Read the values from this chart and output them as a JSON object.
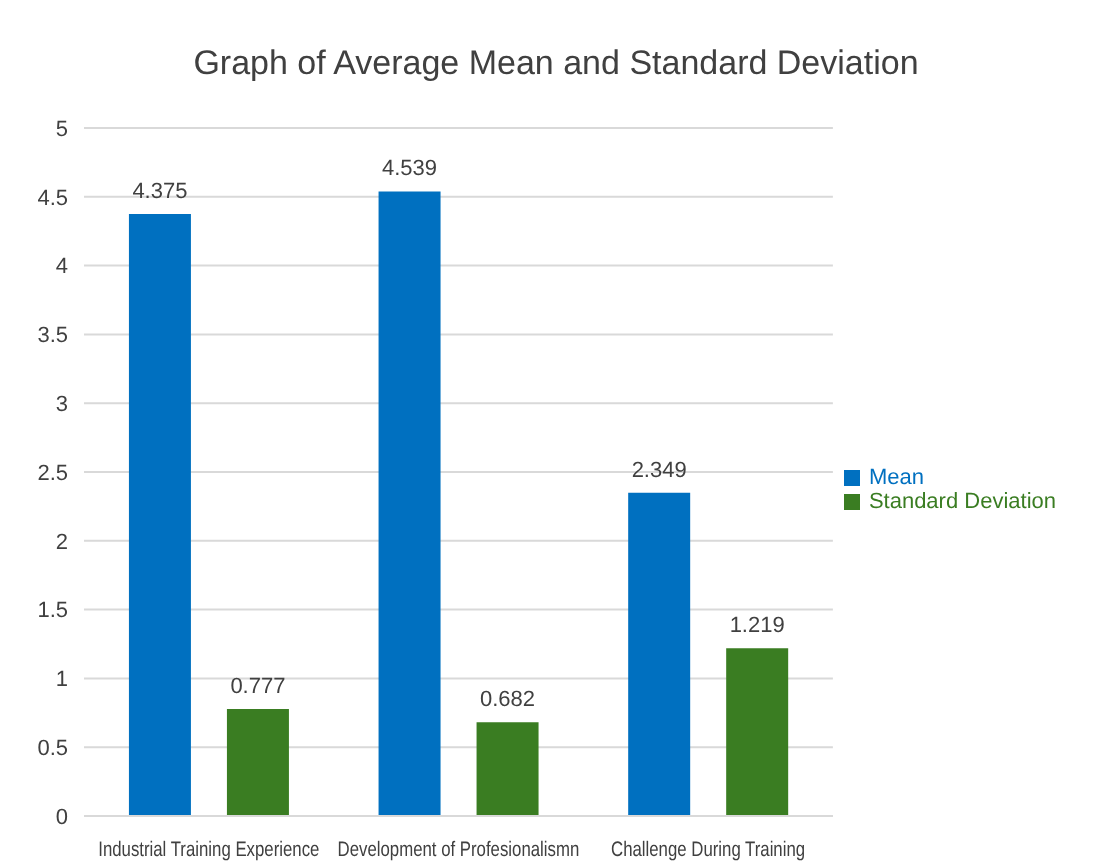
{
  "chart_data": {
    "type": "bar",
    "title": "Graph of Average Mean and Standard Deviation",
    "categories": [
      "Industrial Training Experience",
      "Development of Profesionalismn",
      "Challenge During Training"
    ],
    "series": [
      {
        "name": "Mean",
        "color": "#0070c0",
        "values": [
          4.375,
          4.539,
          2.349
        ]
      },
      {
        "name": "Standard Deviation",
        "color": "#3a7d22",
        "values": [
          0.777,
          0.682,
          1.219
        ]
      }
    ],
    "ylim": [
      0,
      5
    ],
    "yticks": [
      0,
      0.5,
      1,
      1.5,
      2,
      2.5,
      3,
      3.5,
      4,
      4.5,
      5
    ],
    "grid": "y",
    "legend": "right",
    "data_labels": true
  }
}
